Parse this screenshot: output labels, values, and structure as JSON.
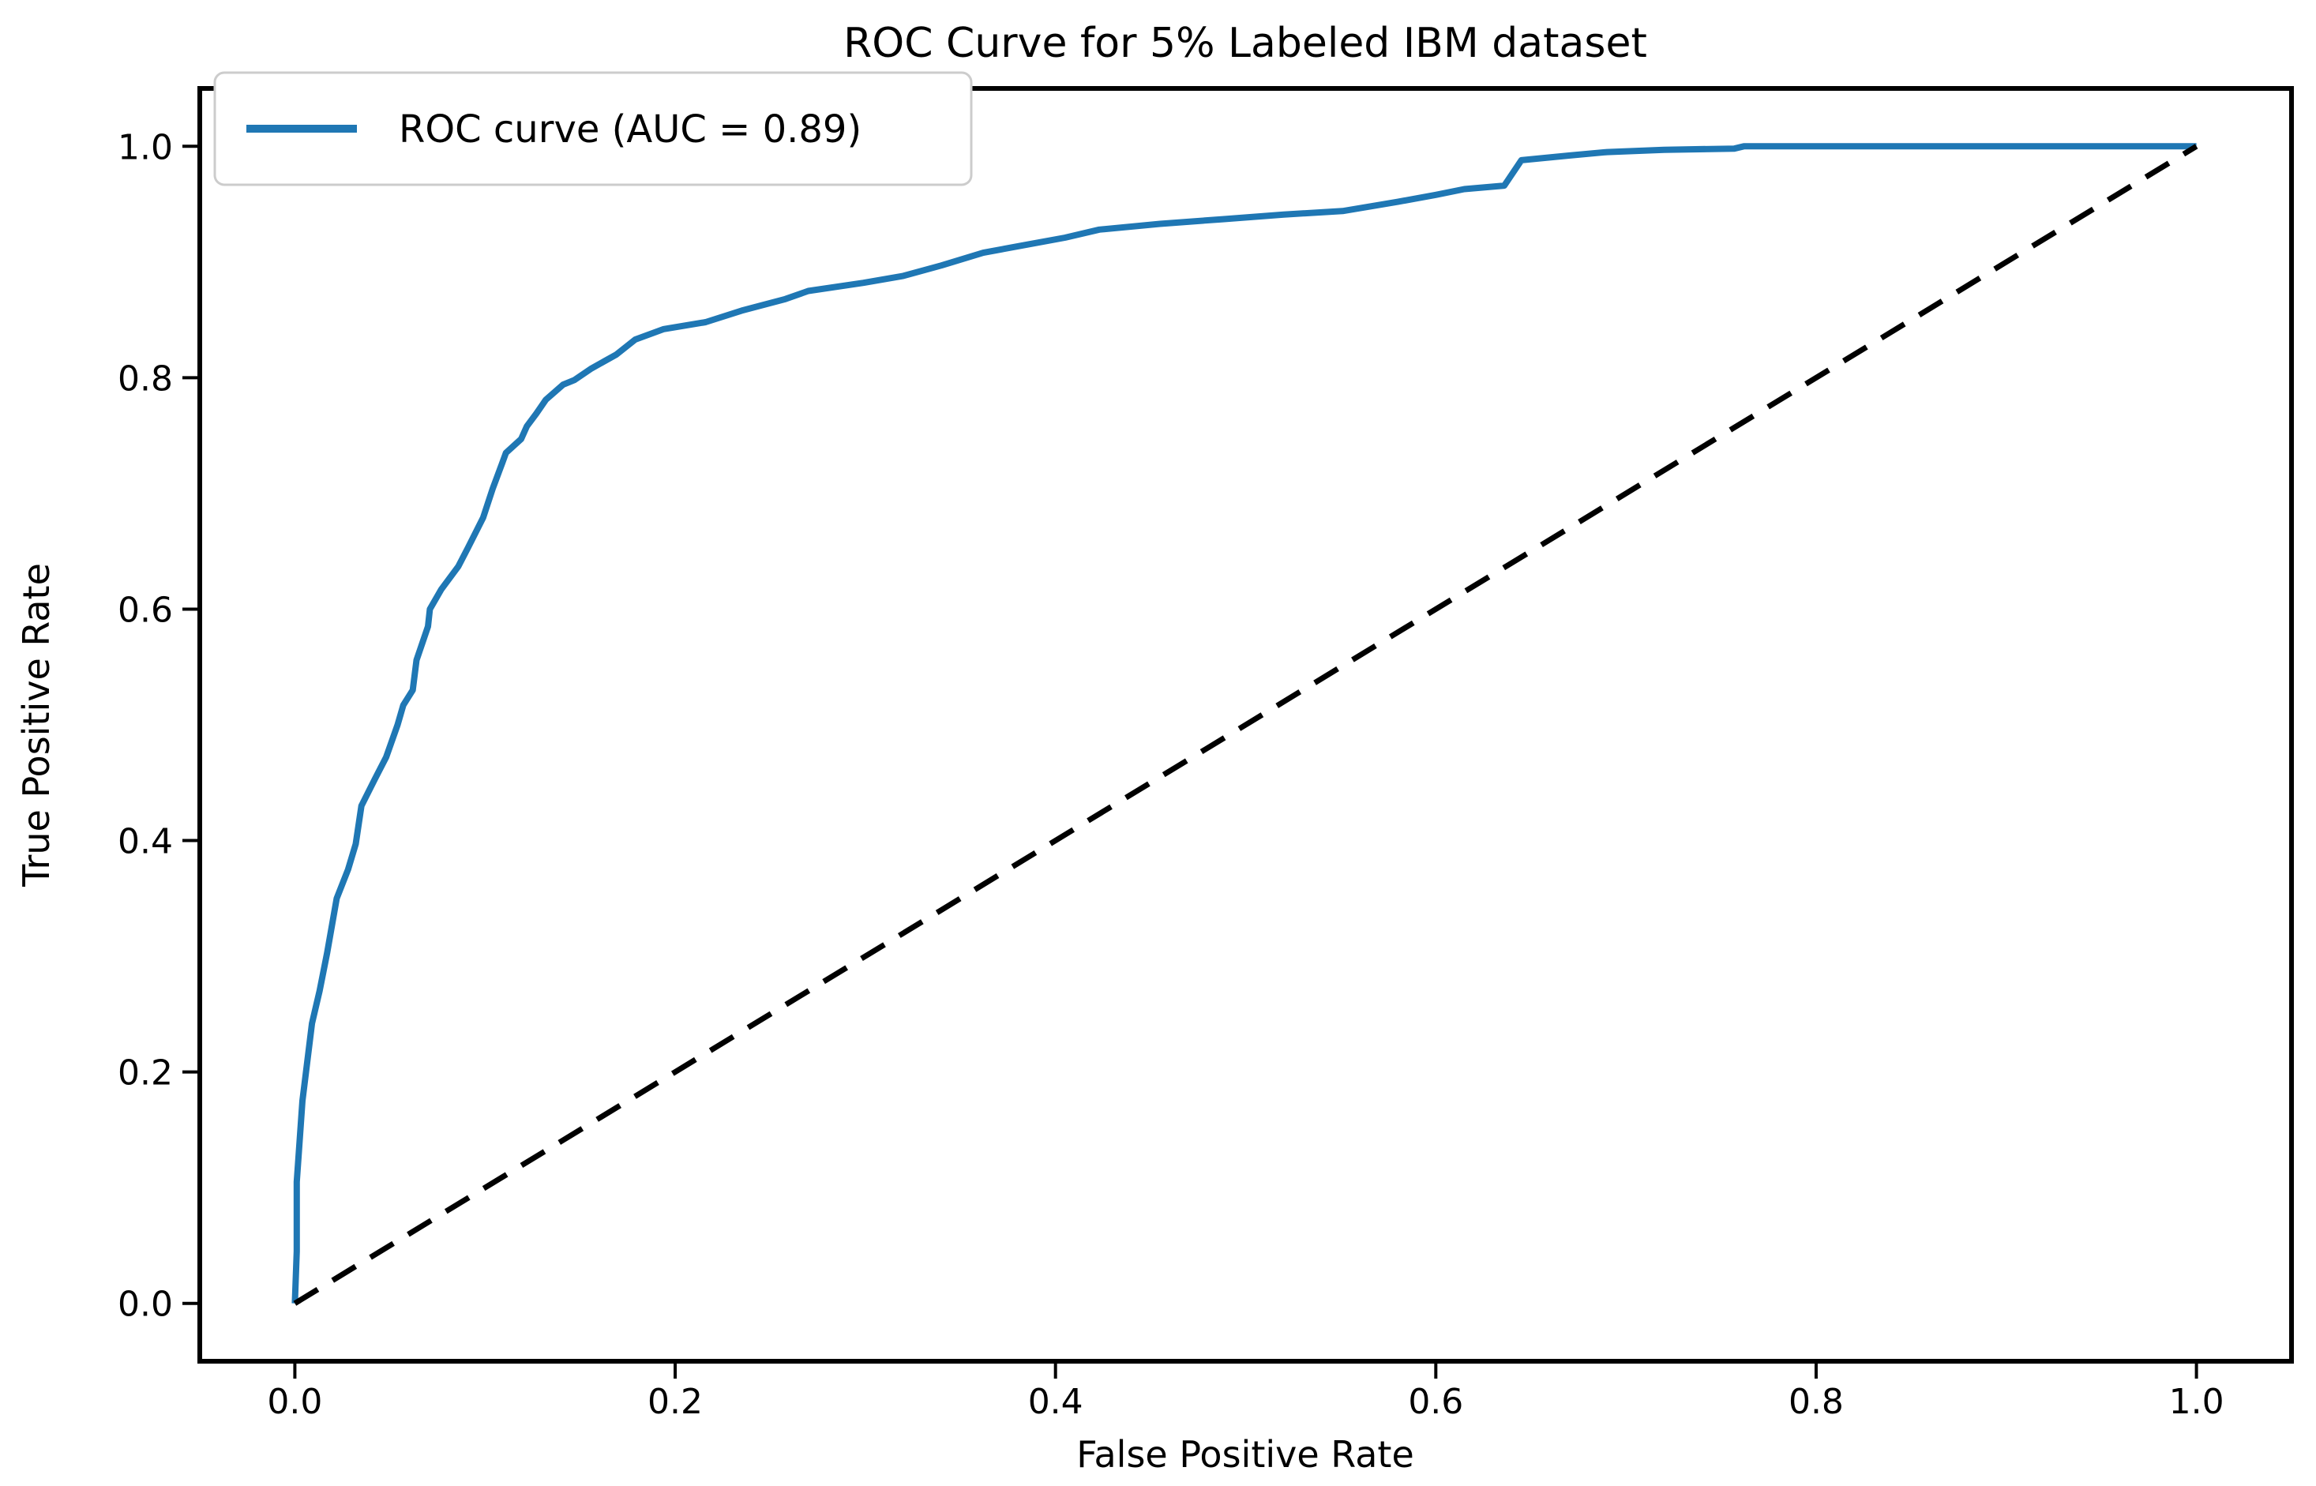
{
  "figure": {
    "title": "ROC Curve for 5% Labeled IBM dataset"
  },
  "colors": {
    "roc_line": "#1f77b4",
    "diagonal_line": "#000000",
    "legend_border": "#cccccc",
    "legend_background": "#ffffff",
    "spine": "#000000",
    "text": "#000000",
    "background": "#ffffff"
  },
  "legend": {
    "entries": [
      {
        "label": "ROC curve (AUC = 0.89)",
        "color": "#1f77b4",
        "line_style": "solid"
      }
    ],
    "position": "upper-left"
  },
  "chart_data": {
    "type": "line",
    "title": "ROC Curve for 5% Labeled IBM dataset",
    "xlabel": "False Positive Rate",
    "ylabel": "True Positive Rate",
    "xlim": [
      -0.05,
      1.05
    ],
    "ylim": [
      -0.05,
      1.05
    ],
    "grid": false,
    "legend_position": "upper-left",
    "auc": 0.89,
    "x_ticks": [
      0.0,
      0.2,
      0.4,
      0.6,
      0.8,
      1.0
    ],
    "x_tick_labels": [
      "0.0",
      "0.2",
      "0.4",
      "0.6",
      "0.8",
      "1.0"
    ],
    "y_ticks": [
      0.0,
      0.2,
      0.4,
      0.6,
      0.8,
      1.0
    ],
    "y_tick_labels": [
      "0.0",
      "0.2",
      "0.4",
      "0.6",
      "0.8",
      "1.0"
    ],
    "series": [
      {
        "name": "ROC curve (AUC = 0.89)",
        "color": "#1f77b4",
        "style": "solid",
        "line_width": 8,
        "points": [
          [
            0.0,
            0.0
          ],
          [
            0.001,
            0.045
          ],
          [
            0.001,
            0.105
          ],
          [
            0.004,
            0.175
          ],
          [
            0.009,
            0.242
          ],
          [
            0.013,
            0.27
          ],
          [
            0.017,
            0.303
          ],
          [
            0.022,
            0.35
          ],
          [
            0.028,
            0.375
          ],
          [
            0.032,
            0.397
          ],
          [
            0.035,
            0.43
          ],
          [
            0.042,
            0.453
          ],
          [
            0.048,
            0.472
          ],
          [
            0.054,
            0.5
          ],
          [
            0.057,
            0.517
          ],
          [
            0.062,
            0.53
          ],
          [
            0.064,
            0.556
          ],
          [
            0.07,
            0.585
          ],
          [
            0.071,
            0.6
          ],
          [
            0.077,
            0.617
          ],
          [
            0.086,
            0.637
          ],
          [
            0.091,
            0.653
          ],
          [
            0.099,
            0.679
          ],
          [
            0.104,
            0.704
          ],
          [
            0.109,
            0.726
          ],
          [
            0.111,
            0.735
          ],
          [
            0.119,
            0.747
          ],
          [
            0.122,
            0.758
          ],
          [
            0.127,
            0.769
          ],
          [
            0.132,
            0.781
          ],
          [
            0.141,
            0.794
          ],
          [
            0.147,
            0.798
          ],
          [
            0.156,
            0.808
          ],
          [
            0.169,
            0.82
          ],
          [
            0.179,
            0.833
          ],
          [
            0.194,
            0.842
          ],
          [
            0.216,
            0.848
          ],
          [
            0.235,
            0.858
          ],
          [
            0.258,
            0.868
          ],
          [
            0.27,
            0.875
          ],
          [
            0.299,
            0.882
          ],
          [
            0.32,
            0.888
          ],
          [
            0.34,
            0.897
          ],
          [
            0.362,
            0.908
          ],
          [
            0.385,
            0.915
          ],
          [
            0.405,
            0.921
          ],
          [
            0.423,
            0.928
          ],
          [
            0.455,
            0.933
          ],
          [
            0.488,
            0.937
          ],
          [
            0.52,
            0.941
          ],
          [
            0.551,
            0.944
          ],
          [
            0.58,
            0.952
          ],
          [
            0.6,
            0.958
          ],
          [
            0.615,
            0.963
          ],
          [
            0.636,
            0.966
          ],
          [
            0.645,
            0.988
          ],
          [
            0.67,
            0.992
          ],
          [
            0.69,
            0.995
          ],
          [
            0.72,
            0.997
          ],
          [
            0.757,
            0.998
          ],
          [
            0.762,
            1.0
          ],
          [
            1.0,
            1.0
          ]
        ]
      },
      {
        "name": "chance-diagonal",
        "color": "#000000",
        "style": "dashed",
        "line_width": 7,
        "points": [
          [
            0.0,
            0.0
          ],
          [
            1.0,
            1.0
          ]
        ]
      }
    ]
  }
}
